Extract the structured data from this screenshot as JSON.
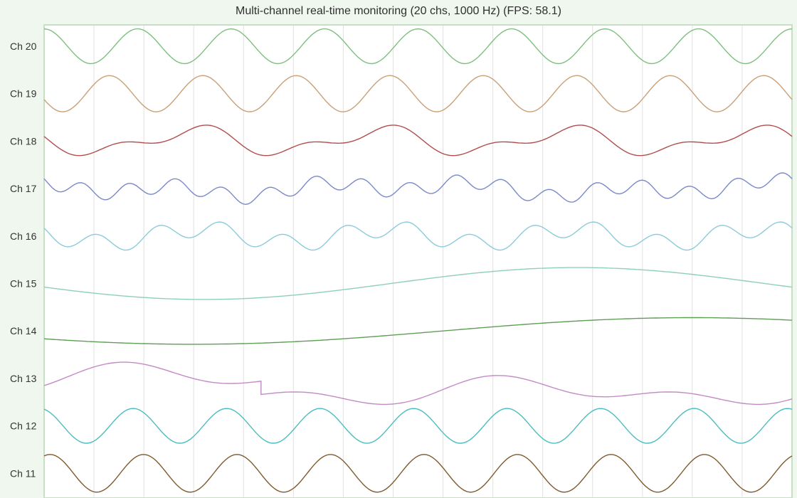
{
  "window": {
    "title": "Multi-channel real-time monitoring (20 chs, 1000 Hz) (FPS: 58.1)"
  },
  "chart_data": {
    "type": "line",
    "title": "Multi-channel real-time monitoring (20 chs, 1000 Hz) (FPS: 58.1)",
    "xlabel": "",
    "ylabel": "",
    "grid": true,
    "xlim": [
      0,
      1
    ],
    "vertical_grid_count": 15,
    "plot_background": "#ffffff",
    "page_background": "#f0f7ef",
    "plot_border_color": "#c7dfc5",
    "grid_color": "#e1e1e1",
    "series": [
      {
        "name": "Ch 20",
        "color": "#7ec07e",
        "components": [
          {
            "amp": 0.72,
            "cycles": 8.0,
            "phase": 0.0
          }
        ]
      },
      {
        "name": "Ch 19",
        "color": "#c9a077",
        "components": [
          {
            "amp": 0.75,
            "cycles": 8.0,
            "phase": 1.9
          }
        ]
      },
      {
        "name": "Ch 18",
        "color": "#b14d4d",
        "components": [
          {
            "amp": 0.45,
            "cycles": 4.0,
            "phase": 1.3
          },
          {
            "amp": 0.28,
            "cycles": 8.0,
            "phase": 1.3
          }
        ]
      },
      {
        "name": "Ch 17",
        "color": "#7b89c8",
        "components": [
          {
            "amp": 0.3,
            "cycles": 16.0,
            "phase": 1.2
          },
          {
            "amp": 0.22,
            "cycles": 5.0,
            "phase": 0.8
          },
          {
            "amp": 0.15,
            "cycles": 2.0,
            "phase": 0.2
          }
        ]
      },
      {
        "name": "Ch 16",
        "color": "#8ccbdb",
        "components": [
          {
            "amp": 0.36,
            "cycles": 12.0,
            "phase": 1.0
          },
          {
            "amp": 0.3,
            "cycles": 4.0,
            "phase": 1.1
          }
        ]
      },
      {
        "name": "Ch 15",
        "color": "#8fd0b5",
        "components": [
          {
            "amp": 0.66,
            "cycles": 1.0,
            "phase": 1.8
          }
        ]
      },
      {
        "name": "Ch 14",
        "color": "#5e9e55",
        "components": [
          {
            "amp": 0.55,
            "cycles": 0.75,
            "phase": 2.2
          }
        ]
      },
      {
        "name": "Ch 13",
        "color": "#c38ac6",
        "components": [
          {
            "amp": 0.32,
            "cycles": 4.0,
            "phase": 3.8
          },
          {
            "amp": 0.38,
            "cycles": 2.0,
            "phase": 4.6
          }
        ],
        "glitch_at": 0.29,
        "glitch_jump": -0.55
      },
      {
        "name": "Ch 12",
        "color": "#4cbdbf",
        "components": [
          {
            "amp": 0.72,
            "cycles": 8.0,
            "phase": 0.3
          }
        ]
      },
      {
        "name": "Ch 11",
        "color": "#7f5a2e",
        "components": [
          {
            "amp": 0.78,
            "cycles": 8.0,
            "phase": -0.4
          }
        ]
      }
    ]
  }
}
